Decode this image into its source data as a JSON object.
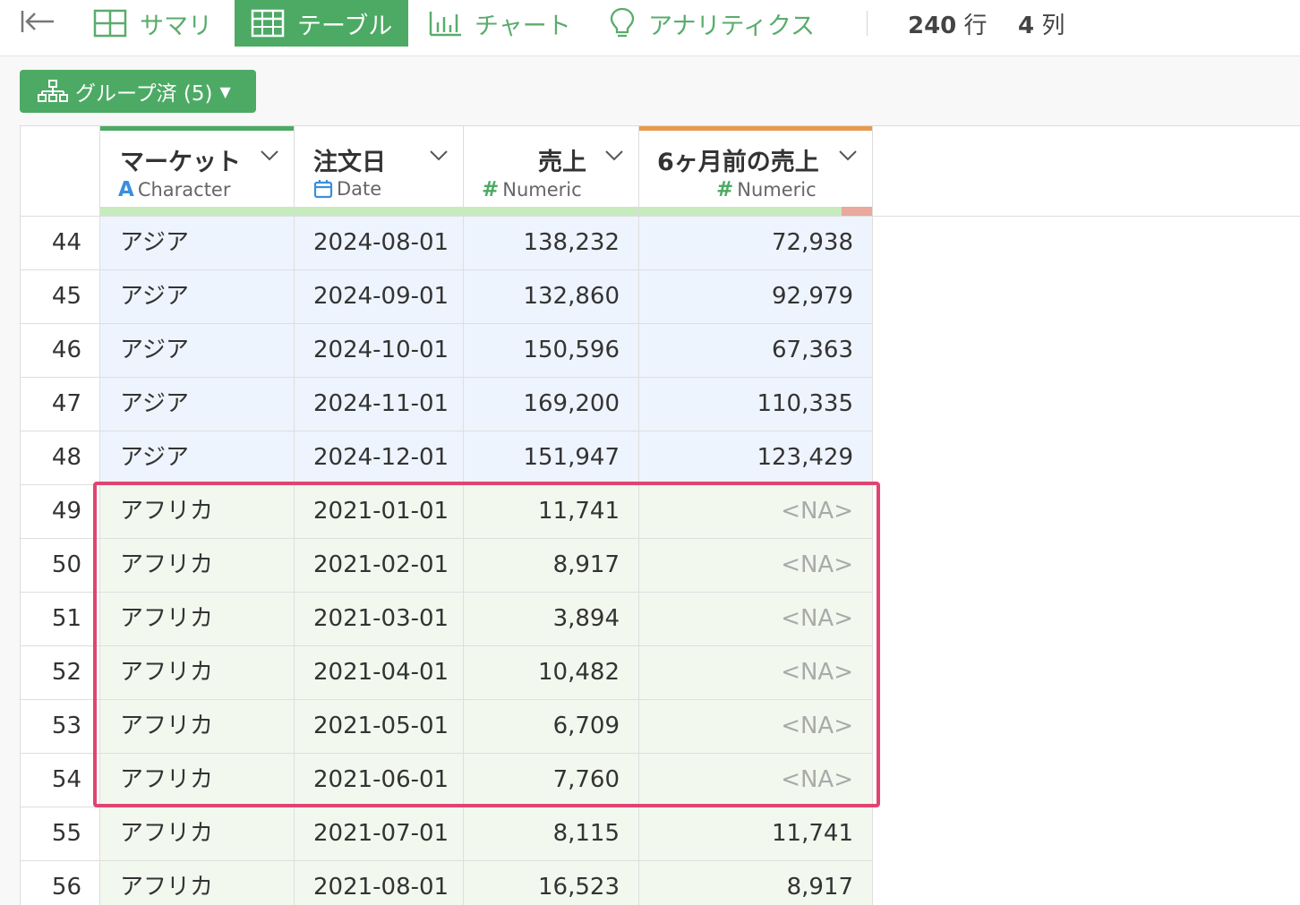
{
  "toolbar": {
    "tabs": [
      {
        "label": "サマリ",
        "icon": "grid-icon"
      },
      {
        "label": "テーブル",
        "icon": "table-icon",
        "active": true
      },
      {
        "label": "チャート",
        "icon": "bar-chart-icon"
      },
      {
        "label": "アナリティクス",
        "icon": "lightbulb-icon"
      }
    ],
    "row_count": "240",
    "row_unit": "行",
    "col_count": "4",
    "col_unit": "列"
  },
  "group_button": {
    "label": "グループ済 (5)"
  },
  "columns": [
    {
      "name": "マーケット",
      "type": "Character"
    },
    {
      "name": "注文日",
      "type": "Date"
    },
    {
      "name": "売上",
      "type": "Numeric"
    },
    {
      "name": "6ヶ月前の売上",
      "type": "Numeric"
    }
  ],
  "rows": [
    {
      "idx": "44",
      "market": "アジア",
      "date": "2024-08-01",
      "sales": "138,232",
      "prev": "72,938"
    },
    {
      "idx": "45",
      "market": "アジア",
      "date": "2024-09-01",
      "sales": "132,860",
      "prev": "92,979"
    },
    {
      "idx": "46",
      "market": "アジア",
      "date": "2024-10-01",
      "sales": "150,596",
      "prev": "67,363"
    },
    {
      "idx": "47",
      "market": "アジア",
      "date": "2024-11-01",
      "sales": "169,200",
      "prev": "110,335"
    },
    {
      "idx": "48",
      "market": "アジア",
      "date": "2024-12-01",
      "sales": "151,947",
      "prev": "123,429"
    },
    {
      "idx": "49",
      "market": "アフリカ",
      "date": "2021-01-01",
      "sales": "11,741",
      "prev": "<NA>"
    },
    {
      "idx": "50",
      "market": "アフリカ",
      "date": "2021-02-01",
      "sales": "8,917",
      "prev": "<NA>"
    },
    {
      "idx": "51",
      "market": "アフリカ",
      "date": "2021-03-01",
      "sales": "3,894",
      "prev": "<NA>"
    },
    {
      "idx": "52",
      "market": "アフリカ",
      "date": "2021-04-01",
      "sales": "10,482",
      "prev": "<NA>"
    },
    {
      "idx": "53",
      "market": "アフリカ",
      "date": "2021-05-01",
      "sales": "6,709",
      "prev": "<NA>"
    },
    {
      "idx": "54",
      "market": "アフリカ",
      "date": "2021-06-01",
      "sales": "7,760",
      "prev": "<NA>"
    },
    {
      "idx": "55",
      "market": "アフリカ",
      "date": "2021-07-01",
      "sales": "8,115",
      "prev": "11,741"
    },
    {
      "idx": "56",
      "market": "アフリカ",
      "date": "2021-08-01",
      "sales": "16,523",
      "prev": "8,917"
    }
  ],
  "colors": {
    "accent_green": "#4caa64",
    "highlight": "#e14470",
    "asia_row": "#eef4fd",
    "africa_row": "#f3f8ef",
    "quality_ok": "#c6ecbd",
    "quality_missing": "#e9a99c",
    "column_top_bar": "#4caa64",
    "derived_column_top_bar": "#e89a4c"
  }
}
